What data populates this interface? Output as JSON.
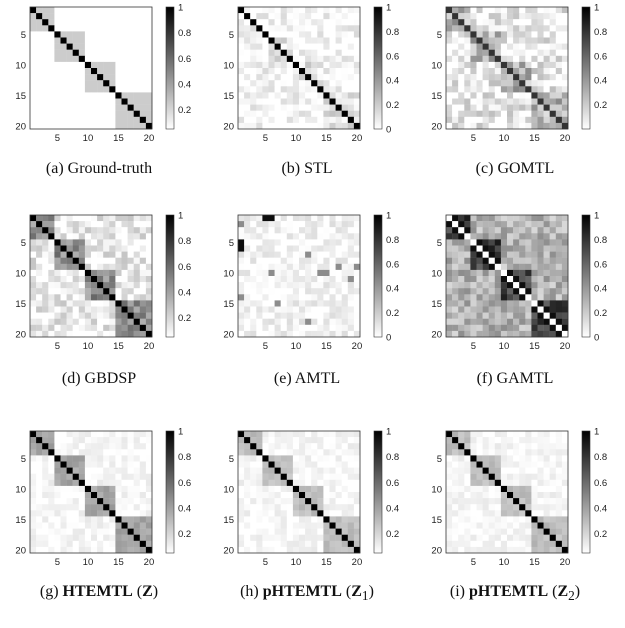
{
  "chart_data": [
    {
      "type": "heatmap",
      "caption_prefix": "(a)",
      "caption_name": "Ground-truth",
      "caption_math": "",
      "caption_sub": "",
      "name_bold": false,
      "x_ticks": [
        "5",
        "10",
        "15",
        "20"
      ],
      "y_ticks": [
        "5",
        "10",
        "15",
        "20"
      ],
      "colorbar_ticks": [
        "1",
        "0.8",
        "0.6",
        "0.4",
        "0.2"
      ],
      "colorbar_range": [
        0.05,
        1
      ],
      "matrix_size": 20,
      "diag": 1.0,
      "blocks": [
        [
          1,
          4
        ],
        [
          5,
          9
        ],
        [
          10,
          14
        ],
        [
          15,
          20
        ]
      ],
      "block_level": 0.2,
      "off_level": 0.0,
      "noise": 0.0,
      "seed": 1
    },
    {
      "type": "heatmap",
      "caption_prefix": "(b)",
      "caption_name": "STL",
      "caption_math": "",
      "caption_sub": "",
      "name_bold": false,
      "x_ticks": [
        "5",
        "10",
        "15",
        "20"
      ],
      "y_ticks": [
        "5",
        "10",
        "15",
        "20"
      ],
      "colorbar_ticks": [
        "1",
        "0.8",
        "0.6",
        "0.4",
        "0.2",
        "0"
      ],
      "colorbar_range": [
        0,
        1
      ],
      "matrix_size": 20,
      "diag": 1.0,
      "blocks": [
        [
          6,
          9
        ],
        [
          10,
          14
        ],
        [
          15,
          20
        ]
      ],
      "block_level": 0.12,
      "off_level": 0.03,
      "noise": 0.12,
      "seed": 7
    },
    {
      "type": "heatmap",
      "caption_prefix": "(c)",
      "caption_name": "GOMTL",
      "caption_math": "",
      "caption_sub": "",
      "name_bold": false,
      "x_ticks": [
        "5",
        "10",
        "15",
        "20"
      ],
      "y_ticks": [
        "5",
        "10",
        "15",
        "20"
      ],
      "colorbar_ticks": [
        "1",
        "0.8",
        "0.6",
        "0.4",
        "0.2"
      ],
      "colorbar_range": [
        0,
        1
      ],
      "matrix_size": 20,
      "diag": 0.8,
      "blocks": [
        [
          1,
          4
        ],
        [
          5,
          9
        ],
        [
          10,
          14
        ],
        [
          15,
          20
        ]
      ],
      "block_level": 0.3,
      "off_level": 0.08,
      "noise": 0.18,
      "seed": 13
    },
    {
      "type": "heatmap",
      "caption_prefix": "(d)",
      "caption_name": "GBDSP",
      "caption_math": "",
      "caption_sub": "",
      "name_bold": false,
      "x_ticks": [
        "5",
        "10",
        "15",
        "20"
      ],
      "y_ticks": [
        "5",
        "10",
        "15",
        "20"
      ],
      "colorbar_ticks": [
        "1",
        "0.8",
        "0.6",
        "0.4",
        "0.2"
      ],
      "colorbar_range": [
        0.05,
        1
      ],
      "matrix_size": 20,
      "diag": 1.0,
      "blocks": [
        [
          1,
          4
        ],
        [
          5,
          9
        ],
        [
          10,
          14
        ],
        [
          15,
          20
        ]
      ],
      "block_level": 0.45,
      "off_level": 0.08,
      "noise": 0.15,
      "seed": 19
    },
    {
      "type": "heatmap",
      "caption_prefix": "(e)",
      "caption_name": "AMTL",
      "caption_math": "",
      "caption_sub": "",
      "name_bold": false,
      "x_ticks": [
        "5",
        "10",
        "15",
        "20"
      ],
      "y_ticks": [
        "5",
        "10",
        "15",
        "20"
      ],
      "colorbar_ticks": [
        "1",
        "0.8",
        "0.6",
        "0.4",
        "0.2",
        "0"
      ],
      "colorbar_range": [
        0,
        1
      ],
      "matrix_size": 20,
      "diag": 0.1,
      "blocks": [],
      "block_level": 0.0,
      "off_level": 0.04,
      "noise": 0.1,
      "seed": 23
    },
    {
      "type": "heatmap",
      "caption_prefix": "(f)",
      "caption_name": "GAMTL",
      "caption_math": "",
      "caption_sub": "",
      "name_bold": false,
      "x_ticks": [
        "5",
        "10",
        "15",
        "20"
      ],
      "y_ticks": [
        "5",
        "10",
        "15",
        "20"
      ],
      "colorbar_ticks": [
        "1",
        "0.8",
        "0.6",
        "0.4",
        "0.2",
        "0"
      ],
      "colorbar_range": [
        0,
        1
      ],
      "matrix_size": 20,
      "diag": 0.0,
      "blocks": [
        [
          1,
          4
        ],
        [
          5,
          9
        ],
        [
          10,
          14
        ],
        [
          15,
          20
        ]
      ],
      "block_level": 0.75,
      "off_level": 0.3,
      "noise": 0.15,
      "seed": 29
    },
    {
      "type": "heatmap",
      "caption_prefix": "(g)",
      "caption_name": "HTEMTL",
      "caption_math": "Z",
      "caption_sub": "",
      "name_bold": true,
      "x_ticks": [
        "5",
        "10",
        "15",
        "20"
      ],
      "y_ticks": [
        "5",
        "10",
        "15",
        "20"
      ],
      "colorbar_ticks": [
        "1",
        "0.8",
        "0.6",
        "0.4",
        "0.2"
      ],
      "colorbar_range": [
        0.05,
        1
      ],
      "matrix_size": 20,
      "diag": 1.0,
      "blocks": [
        [
          1,
          4
        ],
        [
          5,
          9
        ],
        [
          10,
          14
        ],
        [
          15,
          20
        ]
      ],
      "block_level": 0.35,
      "off_level": 0.03,
      "noise": 0.06,
      "seed": 31
    },
    {
      "type": "heatmap",
      "caption_prefix": "(h)",
      "caption_name": "pHTEMTL",
      "caption_math": "Z",
      "caption_sub": "1",
      "name_bold": true,
      "x_ticks": [
        "5",
        "10",
        "15",
        "20"
      ],
      "y_ticks": [
        "5",
        "10",
        "15",
        "20"
      ],
      "colorbar_ticks": [
        "1",
        "0.8",
        "0.6",
        "0.4",
        "0.2"
      ],
      "colorbar_range": [
        0.05,
        1
      ],
      "matrix_size": 20,
      "diag": 1.0,
      "blocks": [
        [
          1,
          4
        ],
        [
          5,
          9
        ],
        [
          10,
          14
        ],
        [
          15,
          20
        ]
      ],
      "block_level": 0.25,
      "off_level": 0.03,
      "noise": 0.06,
      "seed": 37
    },
    {
      "type": "heatmap",
      "caption_prefix": "(i)",
      "caption_name": "pHTEMTL",
      "caption_math": "Z",
      "caption_sub": "2",
      "name_bold": true,
      "x_ticks": [
        "5",
        "10",
        "15",
        "20"
      ],
      "y_ticks": [
        "5",
        "10",
        "15",
        "20"
      ],
      "colorbar_ticks": [
        "1",
        "0.8",
        "0.6",
        "0.4",
        "0.2"
      ],
      "colorbar_range": [
        0.05,
        1
      ],
      "matrix_size": 20,
      "diag": 1.0,
      "blocks": [
        [
          1,
          4
        ],
        [
          5,
          9
        ],
        [
          10,
          14
        ],
        [
          15,
          20
        ]
      ],
      "block_level": 0.25,
      "off_level": 0.03,
      "noise": 0.06,
      "seed": 41
    }
  ]
}
